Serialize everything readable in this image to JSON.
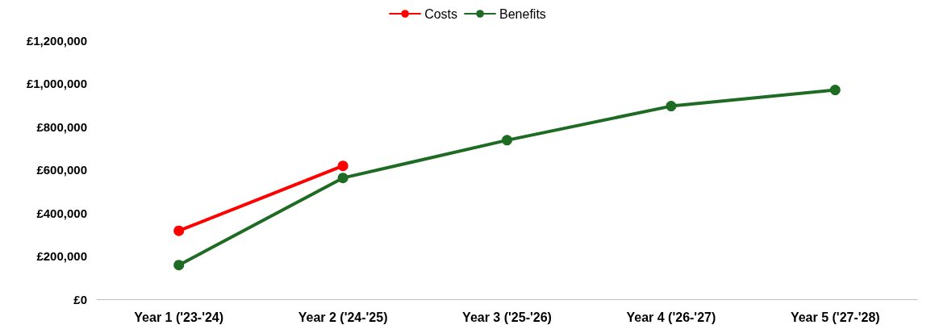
{
  "chart_data": {
    "type": "line",
    "categories": [
      "Year 1 ('23-'24)",
      "Year 2 ('24-'25)",
      "Year 3 ('25-'26)",
      "Year 4 ('26-'27)",
      "Year 5 ('27-'28)"
    ],
    "series": [
      {
        "name": "Costs",
        "color": "#ff0000",
        "values": [
          317000,
          618000,
          null,
          null,
          null
        ]
      },
      {
        "name": "Benefits",
        "color": "#1e6b23",
        "values": [
          158000,
          562000,
          737000,
          895000,
          970000
        ]
      }
    ],
    "ylim": [
      0,
      1200000
    ],
    "yticks": [
      {
        "value": 0,
        "label": "£0"
      },
      {
        "value": 200000,
        "label": "£200,000"
      },
      {
        "value": 400000,
        "label": "£400,000"
      },
      {
        "value": 600000,
        "label": "£600,000"
      },
      {
        "value": 800000,
        "label": "£800,000"
      },
      {
        "value": 1000000,
        "label": "£1,000,000"
      },
      {
        "value": 1200000,
        "label": "£1,200,000"
      }
    ],
    "grid": false,
    "legend": "top",
    "marker": "circle",
    "line_style": "solid"
  }
}
